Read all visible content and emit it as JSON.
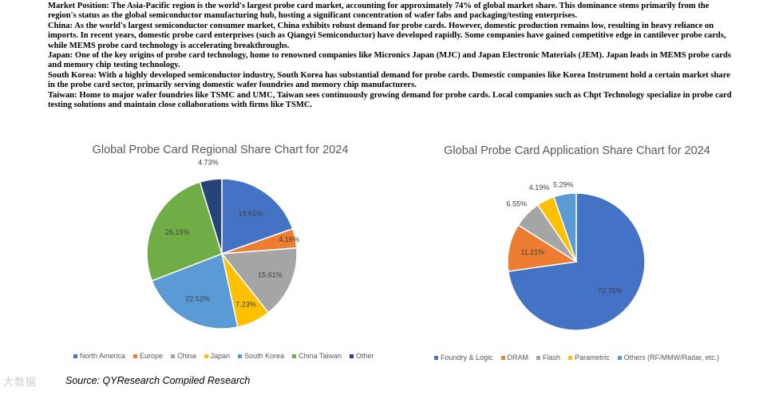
{
  "paragraphs": [
    "Market Position: The Asia-Pacific region is the world's largest probe card market, accounting for approximately 74% of global market share. This dominance stems primarily from the region's status as the global semiconductor manufacturing hub, hosting a significant concentration of wafer fabs and packaging/testing enterprises.",
    "China: As the world's largest semiconductor consumer market, China exhibits robust demand for probe cards. However, domestic production remains low, resulting in heavy reliance on imports. In recent years, domestic probe card enterprises (such as Qiangyi Semiconductor) have developed rapidly. Some companies have gained competitive edge in cantilever probe cards, while MEMS probe card technology is accelerating breakthroughs.",
    "Japan: One of the key origins of probe card technology, home to renowned companies like Micronics Japan (MJC) and Japan Electronic Materials (JEM). Japan leads in MEMS probe cards and memory chip testing technology.",
    "South Korea: With a highly developed semiconductor industry, South Korea has substantial demand for probe cards. Domestic companies like Korea Instrument hold a certain market share in the probe card sector, primarily serving domestic wafer foundries and memory chip manufacturers.",
    "Taiwan: Home to major wafer foundries like TSMC and UMC, Taiwan sees continuously growing demand for probe cards. Local companies such as Chpt Technology specialize in probe card testing solutions and maintain close collaborations with firms like TSMC."
  ],
  "source": "Source: QYResearch Compiled Research",
  "watermark": "大数据",
  "chart_data": [
    {
      "type": "pie",
      "title": "Global Probe Card Regional Share Chart for 2024",
      "categories": [
        "North America",
        "Europe",
        "China",
        "Japan",
        "South Korea",
        "China Taiwan",
        "Other"
      ],
      "values": [
        19.61,
        4.16,
        15.61,
        7.23,
        22.52,
        26.15,
        4.73
      ],
      "labels": [
        "19.61%",
        "4.16%",
        "15.61%",
        "7.23%",
        "22.52%",
        "26.15%",
        "4.73%"
      ],
      "colors": [
        "#4472C4",
        "#ED7D31",
        "#A5A5A5",
        "#FFC000",
        "#5B9BD5",
        "#70AD47",
        "#264478"
      ],
      "legend": "bottom"
    },
    {
      "type": "pie",
      "title": "Global Probe Card Application Share Chart for 2024",
      "categories": [
        "Foundry & Logic",
        "DRAM",
        "Flash",
        "Parametric",
        "Others (RF/MMW/Radar, etc.)"
      ],
      "values": [
        72.76,
        11.21,
        6.55,
        4.19,
        5.29
      ],
      "labels": [
        "72.76%",
        "11.21%",
        "6.55%",
        "4.19%",
        "5.29%"
      ],
      "colors": [
        "#4472C4",
        "#ED7D31",
        "#A5A5A5",
        "#FFC000",
        "#5B9BD5"
      ],
      "legend": "bottom"
    }
  ]
}
